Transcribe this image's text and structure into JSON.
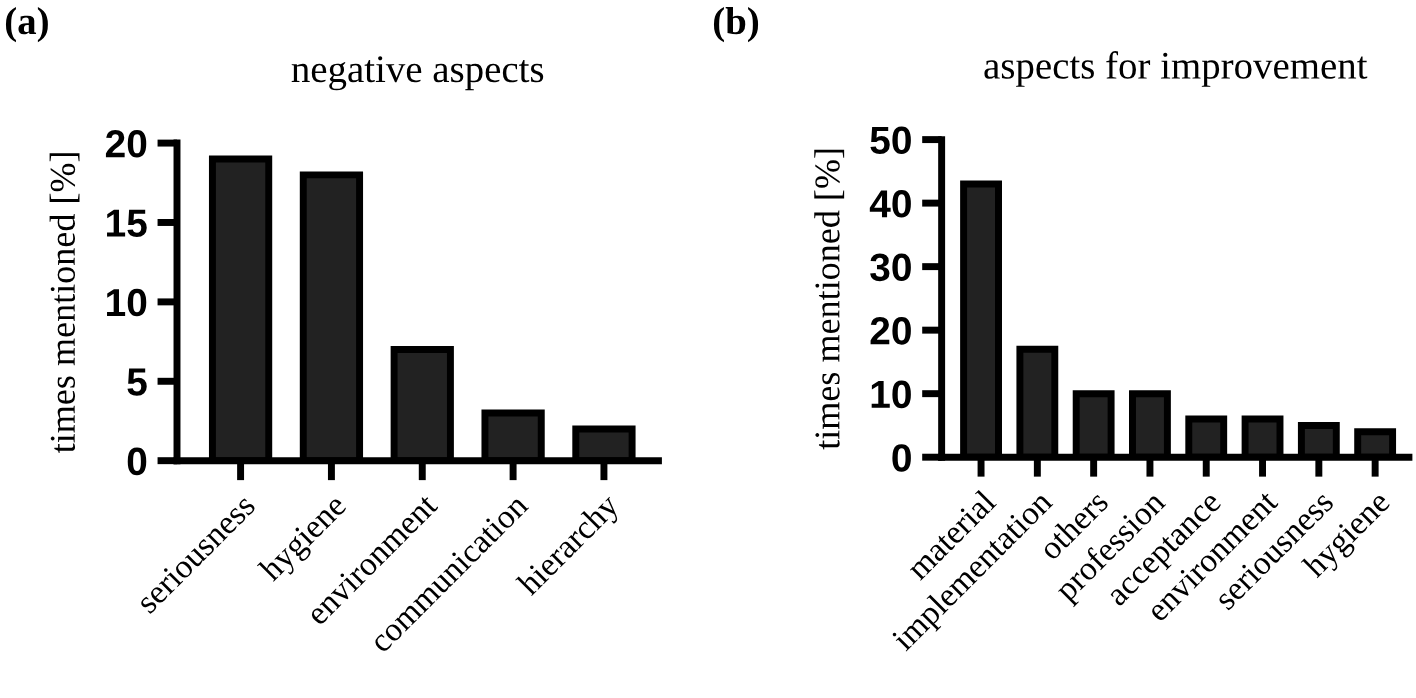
{
  "chart_data": [
    {
      "type": "bar",
      "title": "negative aspects",
      "ylabel": "times mentioned [%]",
      "annotations": [
        "(a)"
      ],
      "categories": [
        "seriousness",
        "hygiene",
        "environment",
        "communication",
        "hierarchy"
      ],
      "values": [
        19,
        18,
        7,
        3,
        2
      ],
      "color": "#222222",
      "ylim": [
        0,
        20
      ],
      "yticks": [
        0,
        5,
        10,
        15,
        20
      ],
      "grid": false,
      "legend": false
    },
    {
      "type": "bar",
      "title": "aspects for improvement",
      "ylabel": "times mentioned [%]",
      "annotations": [
        "(b)"
      ],
      "categories": [
        "material",
        "implementation",
        "others",
        "profession",
        "acceptance",
        "environment",
        "seriousness",
        "hygiene"
      ],
      "values": [
        43,
        17,
        10,
        10,
        6,
        6,
        5,
        4
      ],
      "color": "#222222",
      "ylim": [
        0,
        50
      ],
      "yticks": [
        0,
        10,
        20,
        30,
        40,
        50
      ],
      "grid": false,
      "legend": false
    }
  ]
}
